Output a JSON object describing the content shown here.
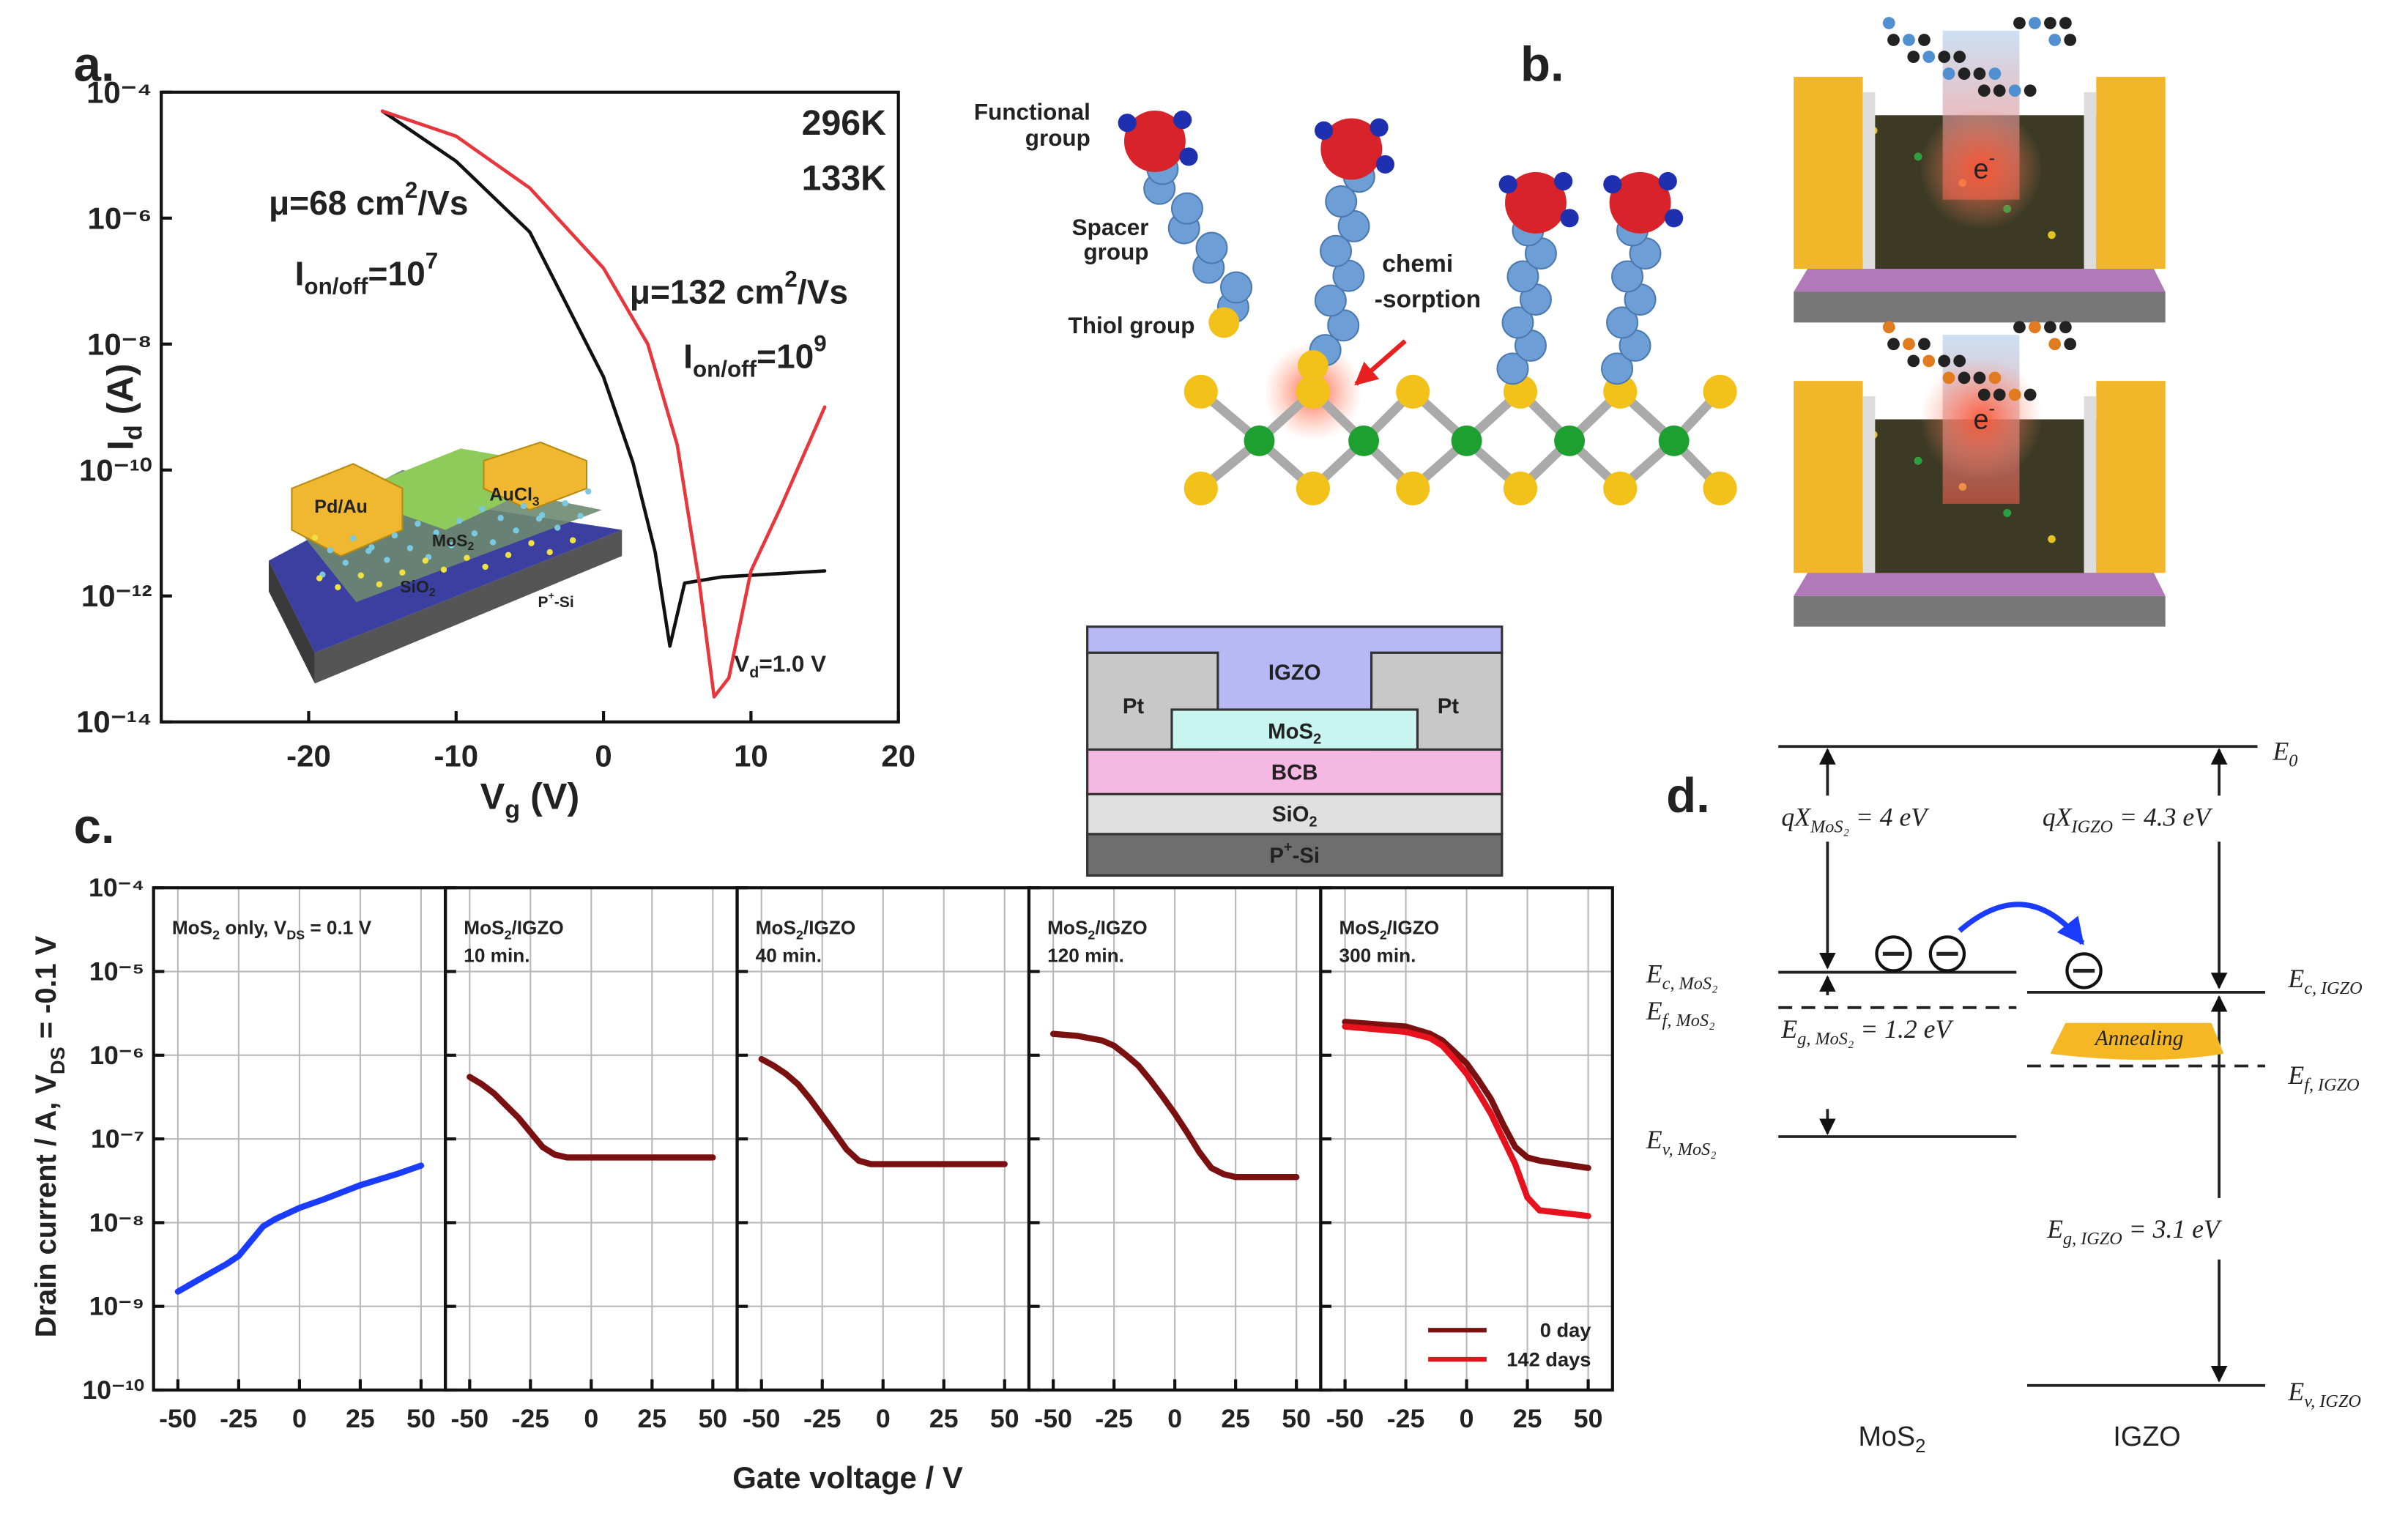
{
  "figure_labels": [
    "a.",
    "b.",
    "c.",
    "d."
  ],
  "chart_data": [
    {
      "type": "line",
      "x_label": [
        {
          "t": "V"
        },
        {
          "t": "g",
          "s": "sub"
        },
        {
          "t": " (V)"
        }
      ],
      "y_label": [
        {
          "t": "I"
        },
        {
          "t": "d",
          "s": "sub"
        },
        {
          "t": " (A)"
        }
      ],
      "log_y": true,
      "xlim": [
        -30,
        20
      ],
      "xticks": [
        -20,
        -10,
        0,
        10,
        20
      ],
      "ylim": [
        1e-14,
        0.0001
      ],
      "yticks": [
        {
          "value": 0.0001,
          "label": "10⁻⁴"
        },
        {
          "value": 1e-06,
          "label": "10⁻⁶"
        },
        {
          "value": 1e-08,
          "label": "10⁻⁸"
        },
        {
          "value": 1e-10,
          "label": "10⁻¹⁰"
        },
        {
          "value": 1e-12,
          "label": "10⁻¹²"
        },
        {
          "value": 1e-14,
          "label": "10⁻¹⁴"
        }
      ],
      "grid": false,
      "legend": "upper right",
      "series": [
        {
          "name": "296K",
          "color": "#111111",
          "x": [
            -15,
            -10,
            -5,
            0,
            2,
            3.5,
            4.5,
            5.5,
            8,
            15
          ],
          "values": [
            5e-05,
            8e-06,
            6e-07,
            3e-09,
            1.3e-10,
            5e-12,
            1.6e-13,
            1.6e-12,
            2e-12,
            2.5e-12
          ]
        },
        {
          "name": "133K",
          "color": "#e8363c",
          "x": [
            -15,
            -10,
            -5,
            0,
            3,
            5,
            6.5,
            7.5,
            8.5,
            10,
            12,
            15
          ],
          "values": [
            5e-05,
            2e-05,
            3e-06,
            1.6e-07,
            1e-08,
            2.5e-10,
            1.6e-12,
            2.5e-14,
            5e-14,
            2.5e-12,
            2.5e-11,
            1e-09
          ]
        }
      ],
      "annotations": [
        {
          "color": "#222222",
          "text": [
            {
              "t": "μ=68 cm"
            },
            {
              "t": "2",
              "s": "sup"
            },
            {
              "t": "/Vs"
            }
          ]
        },
        {
          "color": "#222222",
          "text": [
            {
              "t": "I"
            },
            {
              "t": "on/off",
              "s": "sub"
            },
            {
              "t": "=10"
            },
            {
              "t": "7",
              "s": "sup"
            }
          ]
        },
        {
          "color": "#e8363c",
          "text": [
            {
              "t": "μ=132 cm"
            },
            {
              "t": "2",
              "s": "sup"
            },
            {
              "t": "/Vs"
            }
          ]
        },
        {
          "color": "#e8363c",
          "text": [
            {
              "t": "I"
            },
            {
              "t": "on/off",
              "s": "sub"
            },
            {
              "t": "=10"
            },
            {
              "t": "9",
              "s": "sup"
            }
          ]
        },
        {
          "color": "#222222",
          "text": [
            {
              "t": "V"
            },
            {
              "t": "d",
              "s": "sub"
            },
            {
              "t": "=1.0 V"
            }
          ]
        }
      ]
    },
    {
      "type": "line",
      "title": [
        {
          "t": "MoS"
        },
        {
          "t": "2",
          "s": "sub"
        },
        {
          "t": " only, V"
        },
        {
          "t": "DS",
          "s": "sub"
        },
        {
          "t": " = 0.1 V"
        }
      ],
      "log_y": true,
      "xlim": [
        -60,
        60
      ],
      "xticks": [
        -50,
        -25,
        0,
        25,
        50
      ],
      "ylim": [
        1e-10,
        0.0001
      ],
      "yticks": [
        {
          "value": 0.0001,
          "label": "10⁻⁴"
        },
        {
          "value": 1e-05,
          "label": "10⁻⁵"
        },
        {
          "value": 1e-06,
          "label": "10⁻⁶"
        },
        {
          "value": 1e-07,
          "label": "10⁻⁷"
        },
        {
          "value": 1e-08,
          "label": "10⁻⁸"
        },
        {
          "value": 1e-09,
          "label": "10⁻⁹"
        },
        {
          "value": 1e-10,
          "label": "10⁻¹⁰"
        }
      ],
      "grid": true,
      "series": [
        {
          "color": "#1a3cff",
          "x": [
            -50,
            -40,
            -30,
            -25,
            -20,
            -15,
            -10,
            0,
            10,
            25,
            40,
            50
          ],
          "values": [
            1.5e-09,
            2.2e-09,
            3.2e-09,
            4e-09,
            6e-09,
            9e-09,
            1.1e-08,
            1.5e-08,
            1.9e-08,
            2.8e-08,
            3.8e-08,
            4.8e-08
          ]
        }
      ]
    },
    {
      "type": "line",
      "title": [
        {
          "t": "MoS"
        },
        {
          "t": "2",
          "s": "sub"
        },
        {
          "t": "/IGZO"
        }
      ],
      "subtitle": "10 min.",
      "log_y": true,
      "xlim": [
        -60,
        60
      ],
      "xticks": [
        -50,
        -25,
        0,
        25,
        50
      ],
      "ylim": [
        1e-10,
        0.0001
      ],
      "yticks": [
        0.0001,
        1e-05,
        1e-06,
        1e-07,
        1e-08,
        1e-09,
        1e-10
      ],
      "grid": true,
      "series": [
        {
          "color": "#7a1010",
          "x": [
            -50,
            -45,
            -40,
            -35,
            -30,
            -25,
            -20,
            -15,
            -10,
            0,
            25,
            50
          ],
          "values": [
            5.5e-07,
            4.5e-07,
            3.5e-07,
            2.5e-07,
            1.8e-07,
            1.2e-07,
            8e-08,
            6.5e-08,
            6e-08,
            6e-08,
            6e-08,
            6e-08
          ]
        }
      ]
    },
    {
      "type": "line",
      "title": [
        {
          "t": "MoS"
        },
        {
          "t": "2",
          "s": "sub"
        },
        {
          "t": "/IGZO"
        }
      ],
      "subtitle": "40 min.",
      "log_y": true,
      "xlim": [
        -60,
        60
      ],
      "xticks": [
        -50,
        -25,
        0,
        25,
        50
      ],
      "ylim": [
        1e-10,
        0.0001
      ],
      "yticks": [
        0.0001,
        1e-05,
        1e-06,
        1e-07,
        1e-08,
        1e-09,
        1e-10
      ],
      "grid": true,
      "series": [
        {
          "color": "#7a1010",
          "x": [
            -50,
            -45,
            -40,
            -35,
            -30,
            -25,
            -20,
            -15,
            -10,
            -5,
            0,
            25,
            50
          ],
          "values": [
            9e-07,
            7.5e-07,
            6e-07,
            4.5e-07,
            3e-07,
            1.9e-07,
            1.2e-07,
            7.5e-08,
            5.5e-08,
            5e-08,
            5e-08,
            5e-08,
            5e-08
          ]
        }
      ]
    },
    {
      "type": "line",
      "title": [
        {
          "t": "MoS"
        },
        {
          "t": "2",
          "s": "sub"
        },
        {
          "t": "/IGZO"
        }
      ],
      "subtitle": "120 min.",
      "log_y": true,
      "xlim": [
        -60,
        60
      ],
      "xticks": [
        -50,
        -25,
        0,
        25,
        50
      ],
      "ylim": [
        1e-10,
        0.0001
      ],
      "yticks": [
        0.0001,
        1e-05,
        1e-06,
        1e-07,
        1e-08,
        1e-09,
        1e-10
      ],
      "grid": true,
      "series": [
        {
          "color": "#7a1010",
          "x": [
            -50,
            -40,
            -30,
            -25,
            -20,
            -15,
            -10,
            -5,
            0,
            5,
            10,
            15,
            20,
            25,
            50
          ],
          "values": [
            1.8e-06,
            1.7e-06,
            1.5e-06,
            1.3e-06,
            1e-06,
            7.5e-07,
            5e-07,
            3.2e-07,
            2e-07,
            1.2e-07,
            7e-08,
            4.5e-08,
            3.8e-08,
            3.5e-08,
            3.5e-08
          ]
        }
      ]
    },
    {
      "type": "line",
      "title": [
        {
          "t": "MoS"
        },
        {
          "t": "2",
          "s": "sub"
        },
        {
          "t": "/IGZO"
        }
      ],
      "subtitle": "300 min.",
      "log_y": true,
      "xlim": [
        -60,
        60
      ],
      "xticks": [
        -50,
        -25,
        0,
        25,
        50
      ],
      "ylim": [
        1e-10,
        0.0001
      ],
      "yticks": [
        0.0001,
        1e-05,
        1e-06,
        1e-07,
        1e-08,
        1e-09,
        1e-10
      ],
      "grid": true,
      "legend": "lower right",
      "series": [
        {
          "name": "0 day",
          "color": "#7a1010",
          "x": [
            -50,
            -25,
            -15,
            -10,
            -5,
            0,
            5,
            10,
            15,
            20,
            25,
            30,
            50
          ],
          "values": [
            2.5e-06,
            2.2e-06,
            1.8e-06,
            1.5e-06,
            1.1e-06,
            8e-07,
            5e-07,
            3e-07,
            1.5e-07,
            8e-08,
            6e-08,
            5.5e-08,
            4.5e-08
          ]
        },
        {
          "name": "142 days",
          "color": "#e8121e",
          "x": [
            -50,
            -25,
            -15,
            -10,
            -5,
            0,
            5,
            10,
            15,
            20,
            25,
            30,
            40,
            50
          ],
          "values": [
            2.2e-06,
            1.9e-06,
            1.6e-06,
            1.3e-06,
            9e-07,
            6e-07,
            3.5e-07,
            2e-07,
            1e-07,
            5e-08,
            2e-08,
            1.4e-08,
            1.3e-08,
            1.2e-08
          ]
        }
      ]
    }
  ],
  "panel_a_inset": {
    "labels": [
      "Pd/Au",
      [
        {
          "t": "AuCl"
        },
        {
          "t": "3",
          "s": "sub"
        }
      ],
      [
        {
          "t": "MoS"
        },
        {
          "t": "2",
          "s": "sub"
        }
      ],
      [
        {
          "t": "SiO"
        },
        {
          "t": "2",
          "s": "sub"
        }
      ],
      [
        {
          "t": "P"
        },
        {
          "t": "+",
          "s": "sup"
        },
        {
          "t": "-Si"
        }
      ]
    ]
  },
  "panel_b": {
    "functional_group": [
      "Functional",
      "group"
    ],
    "spacer_group": [
      "Spacer",
      "group"
    ],
    "thiol_group": "Thiol group",
    "chemisorption": [
      "chemi",
      "-sorption"
    ],
    "electron_labels": [
      [
        {
          "t": "e"
        },
        {
          "t": "-",
          "s": "sup"
        }
      ],
      [
        {
          "t": "e"
        },
        {
          "t": "-",
          "s": "sup"
        }
      ]
    ]
  },
  "device_stack": {
    "layers": [
      "IGZO",
      "Pt",
      "Pt",
      [
        {
          "t": "MoS"
        },
        {
          "t": "2",
          "s": "sub"
        }
      ],
      "BCB",
      [
        {
          "t": "SiO"
        },
        {
          "t": "2",
          "s": "sub"
        }
      ],
      [
        {
          "t": "P"
        },
        {
          "t": "+",
          "s": "sup"
        },
        {
          "t": "-Si"
        }
      ]
    ]
  },
  "panel_c": {
    "x_label": "Gate voltage / V",
    "y_label": [
      {
        "t": "Drain current  / A, V"
      },
      {
        "t": "DS",
        "s": "sub"
      },
      {
        "t": " = -0.1 V"
      }
    ]
  },
  "band_diagram": {
    "e0": [
      {
        "t": "E"
      },
      {
        "t": "0",
        "s": "sub"
      }
    ],
    "chi_mos2": [
      {
        "t": "qX"
      },
      {
        "t": "MoS₂",
        "s": "sub"
      },
      {
        "t": " = 4  eV"
      }
    ],
    "chi_igzo": [
      {
        "t": "qX"
      },
      {
        "t": "IGZO",
        "s": "sub"
      },
      {
        "t": " = 4.3  eV"
      }
    ],
    "ec_mos2": [
      {
        "t": "E"
      },
      {
        "t": "c, MoS₂",
        "s": "sub"
      }
    ],
    "ef_mos2": [
      {
        "t": "E"
      },
      {
        "t": "f, MoS₂",
        "s": "sub"
      }
    ],
    "eg_mos2": [
      {
        "t": "E"
      },
      {
        "t": "g, MoS₂",
        "s": "sub"
      },
      {
        "t": " = 1.2 eV"
      }
    ],
    "ev_mos2": [
      {
        "t": "E"
      },
      {
        "t": "v, MoS₂",
        "s": "sub"
      }
    ],
    "ec_igzo": [
      {
        "t": "E"
      },
      {
        "t": "c, IGZO",
        "s": "sub"
      }
    ],
    "ef_igzo": [
      {
        "t": "E"
      },
      {
        "t": "f, IGZO",
        "s": "sub"
      }
    ],
    "eg_igzo": [
      {
        "t": "E"
      },
      {
        "t": "g, IGZO",
        "s": "sub"
      },
      {
        "t": " = 3.1 eV"
      }
    ],
    "ev_igzo": [
      {
        "t": "E"
      },
      {
        "t": "v, IGZO",
        "s": "sub"
      }
    ],
    "annealing": "Annealing",
    "materials": [
      [
        {
          "t": "MoS"
        },
        {
          "t": "2",
          "s": "sub"
        }
      ],
      "IGZO"
    ]
  }
}
